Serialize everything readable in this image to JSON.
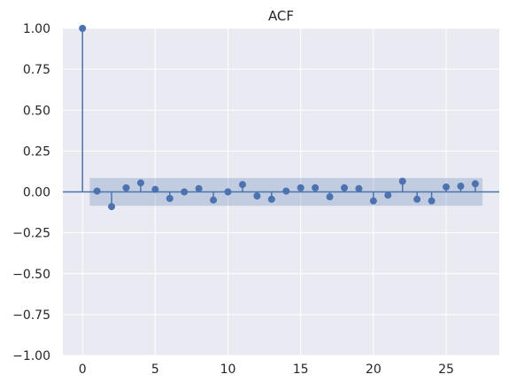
{
  "chart_data": {
    "type": "scatter",
    "subtype": "stem",
    "title": "ACF",
    "xlabel": "",
    "ylabel": "",
    "xlim": [
      -1.35,
      28.65
    ],
    "ylim": [
      -1.0,
      1.0
    ],
    "x_ticks": [
      0,
      5,
      10,
      15,
      20,
      25
    ],
    "y_ticks": [
      -1.0,
      -0.75,
      -0.5,
      -0.25,
      0.0,
      0.25,
      0.5,
      0.75,
      1.0
    ],
    "x_tick_labels": [
      "0",
      "5",
      "10",
      "15",
      "20",
      "25"
    ],
    "y_tick_labels": [
      "−1.00",
      "−0.75",
      "−0.50",
      "−0.25",
      "0.00",
      "0.25",
      "0.50",
      "0.75",
      "1.00"
    ],
    "grid": true,
    "background_color": "#EAEAF2",
    "grid_color": "#FFFFFF",
    "marker_color": "#4C72B0",
    "confidence_band_color": "#4C72B0",
    "series": [
      {
        "lags": [
          0,
          1,
          2,
          3,
          4,
          5,
          6,
          7,
          8,
          9,
          10,
          11,
          12,
          13,
          14,
          15,
          16,
          17,
          18,
          19,
          20,
          21,
          22,
          23,
          24,
          25,
          26,
          27
        ],
        "values": [
          1.0,
          0.005,
          -0.09,
          0.025,
          0.055,
          0.015,
          -0.04,
          0.0,
          0.02,
          -0.05,
          0.0,
          0.045,
          -0.025,
          -0.045,
          0.005,
          0.025,
          0.025,
          -0.03,
          0.025,
          0.02,
          -0.055,
          -0.02,
          0.065,
          -0.045,
          -0.055,
          0.03,
          0.035,
          0.05
        ]
      }
    ],
    "confidence_band": {
      "x_range": [
        0.5,
        27.5
      ],
      "upper": 0.085,
      "lower": -0.085
    }
  }
}
